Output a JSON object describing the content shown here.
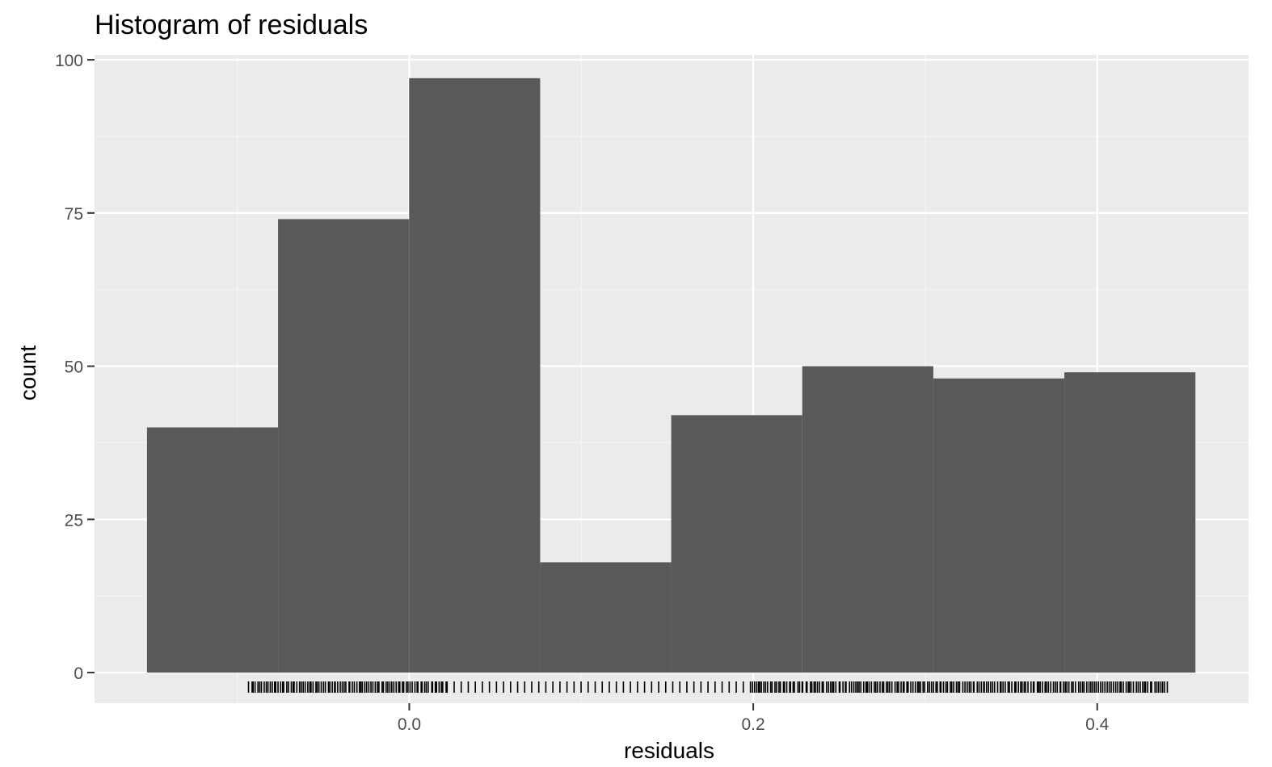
{
  "chart_data": {
    "type": "bar",
    "title": "Histogram of residuals",
    "xlabel": "residuals",
    "ylabel": "count",
    "xlim": [
      -0.183,
      0.488
    ],
    "ylim": [
      -5.0,
      100.8
    ],
    "x_ticks": [
      0.0,
      0.2,
      0.4
    ],
    "x_tick_labels": [
      "0.0",
      "0.2",
      "0.4"
    ],
    "x_minor_ticks": [
      -0.1,
      0.1,
      0.3
    ],
    "y_ticks": [
      0,
      25,
      50,
      75,
      100
    ],
    "y_tick_labels": [
      "0",
      "25",
      "50",
      "75",
      "100"
    ],
    "y_minor_ticks": [
      12.5,
      37.5,
      62.5,
      87.5
    ],
    "bin_width": 0.0762,
    "bins": [
      {
        "x0": -0.1525,
        "x1": -0.0763,
        "count": 40
      },
      {
        "x0": -0.0763,
        "x1": -0.0001,
        "count": 74
      },
      {
        "x0": -0.0001,
        "x1": 0.0761,
        "count": 97
      },
      {
        "x0": 0.0761,
        "x1": 0.1523,
        "count": 18
      },
      {
        "x0": 0.1523,
        "x1": 0.2285,
        "count": 42
      },
      {
        "x0": 0.2285,
        "x1": 0.3047,
        "count": 50
      },
      {
        "x0": 0.3047,
        "x1": 0.3809,
        "count": 48
      },
      {
        "x0": 0.3809,
        "x1": 0.4571,
        "count": 49
      }
    ],
    "rug": {
      "segments": [
        {
          "from": -0.093,
          "to": 0.022,
          "density": "dense"
        },
        {
          "from": 0.022,
          "to": 0.198,
          "density": "sparse"
        },
        {
          "from": 0.198,
          "to": 0.441,
          "density": "dense"
        }
      ]
    },
    "colors": {
      "panel_background": "#ebebeb",
      "grid_major": "#ffffff",
      "grid_minor": "#f5f5f5",
      "bar_fill": "#595959",
      "rug": "#000000",
      "tick_label": "#4d4d4d",
      "axis_tick": "#333333"
    },
    "grid": true,
    "legend": "none"
  }
}
